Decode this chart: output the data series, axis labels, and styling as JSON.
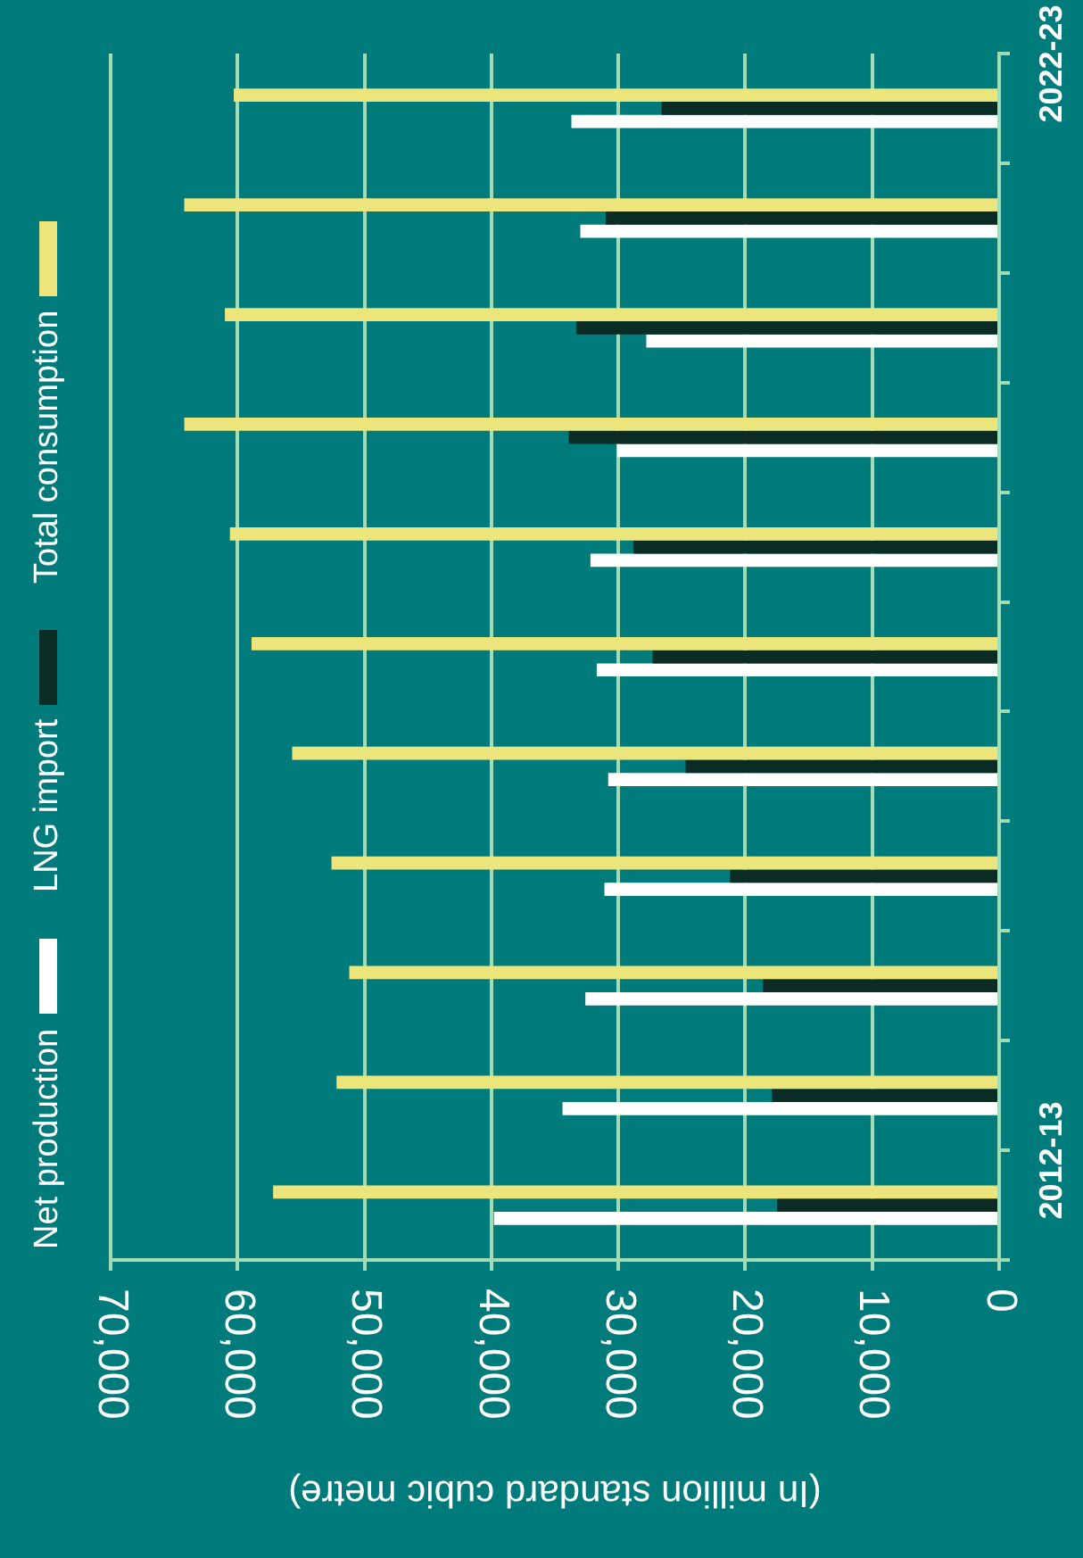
{
  "chart_data": {
    "type": "bar",
    "orientation": "horizontal",
    "xlabel": "(In million standard cubic metre)",
    "categories": [
      "2022-23",
      null,
      null,
      null,
      null,
      null,
      null,
      null,
      null,
      null,
      "2012-13"
    ],
    "series": [
      {
        "name": "Net production",
        "color": "#ffffff",
        "values": [
          33700,
          33000,
          27800,
          30100,
          32200,
          31700,
          30800,
          31100,
          32600,
          34400,
          39800
        ]
      },
      {
        "name": "LNG import",
        "color": "#0b2b25",
        "values": [
          26600,
          31000,
          33300,
          33900,
          28800,
          27300,
          24700,
          21200,
          18600,
          17900,
          17500
        ]
      },
      {
        "name": "Total consumption",
        "color": "#ebe57c",
        "values": [
          60300,
          64200,
          61000,
          64200,
          60600,
          58900,
          55700,
          52600,
          51200,
          52200,
          57200
        ]
      }
    ],
    "xlim": [
      70000,
      0
    ],
    "xticks": [
      {
        "value": 70000,
        "label": "70,000"
      },
      {
        "value": 60000,
        "label": "60,000"
      },
      {
        "value": 50000,
        "label": "50,000"
      },
      {
        "value": 40000,
        "label": "40,000"
      },
      {
        "value": 30000,
        "label": "30,000"
      },
      {
        "value": 20000,
        "label": "20,000"
      },
      {
        "value": 10000,
        "label": "10,000"
      },
      0
    ],
    "grid": "x",
    "legend": "left"
  }
}
